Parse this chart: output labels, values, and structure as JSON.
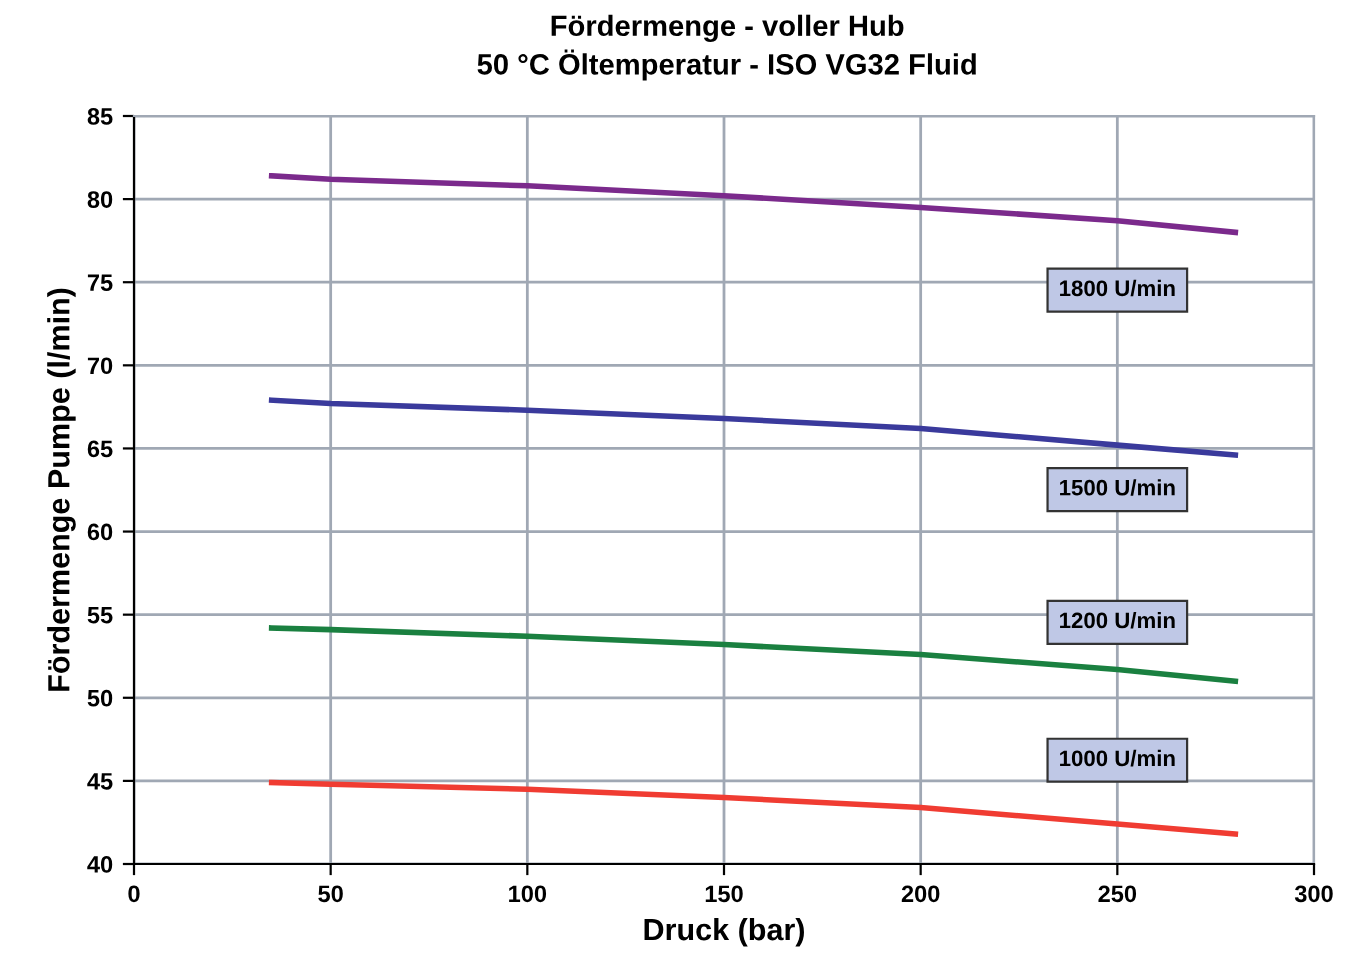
{
  "chart_data": {
    "type": "line",
    "title": "Fördermenge - voller Hub\n50 °C Öltemperatur - ISO VG32 Fluid",
    "xlabel": "Druck (bar)",
    "ylabel": "Fördermenge Pumpe (l/min)",
    "x": [
      35,
      50,
      100,
      150,
      200,
      250,
      280
    ],
    "series": [
      {
        "name": "1800 U/min",
        "color": "#7b2a8c",
        "values": [
          81.4,
          81.2,
          80.8,
          80.2,
          79.5,
          78.7,
          78.0
        ]
      },
      {
        "name": "1500 U/min",
        "color": "#3a3a9c",
        "values": [
          67.9,
          67.7,
          67.3,
          66.8,
          66.2,
          65.2,
          64.6
        ]
      },
      {
        "name": "1200 U/min",
        "color": "#1a8040",
        "values": [
          54.2,
          54.1,
          53.7,
          53.2,
          52.6,
          51.7,
          51.0
        ]
      },
      {
        "name": "1000 U/min",
        "color": "#f03c32",
        "values": [
          44.9,
          44.8,
          44.5,
          44.0,
          43.4,
          42.4,
          41.8
        ]
      }
    ],
    "xlim": [
      0,
      300
    ],
    "xticks": [
      0,
      50,
      100,
      150,
      200,
      250,
      300
    ],
    "ylim": [
      40,
      85
    ],
    "yticks": [
      40,
      45,
      50,
      55,
      60,
      65,
      70,
      75,
      80,
      85
    ],
    "grid": true,
    "marker": "none",
    "line_style": "solid"
  }
}
